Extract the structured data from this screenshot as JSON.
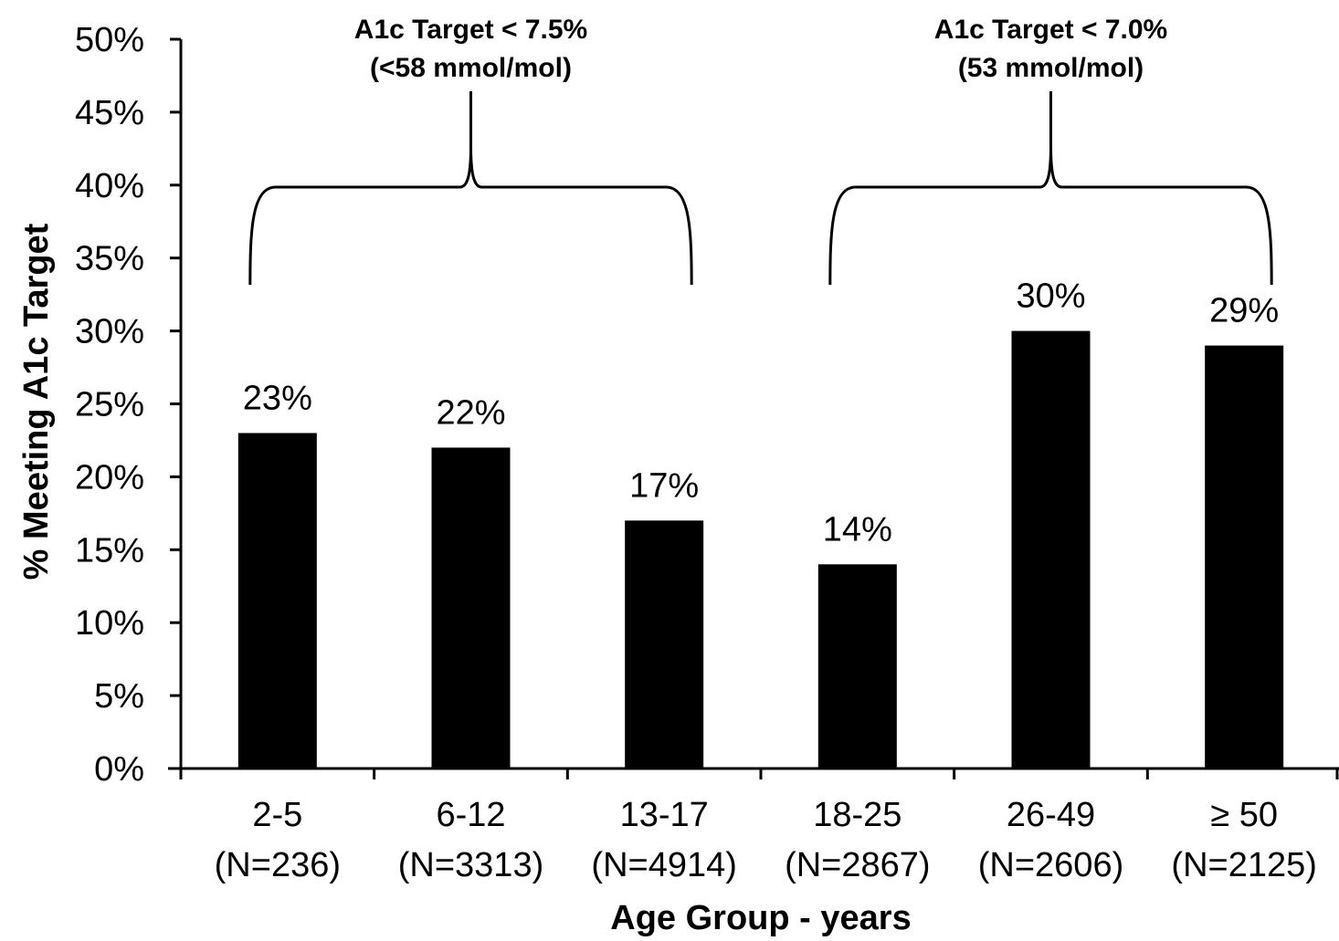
{
  "chart_data": {
    "type": "bar",
    "categories": [
      "2-5",
      "6-12",
      "13-17",
      "18-25",
      "26-49",
      "≥ 50"
    ],
    "category_counts": [
      "(N=236)",
      "(N=3313)",
      "(N=4914)",
      "(N=2867)",
      "(N=2606)",
      "(N=2125)"
    ],
    "values": [
      23,
      22,
      17,
      14,
      30,
      29
    ],
    "value_labels": [
      "23%",
      "22%",
      "17%",
      "14%",
      "30%",
      "29%"
    ],
    "xlabel": "Age Group - years",
    "ylabel": "% Meeting A1c Target",
    "ylim": [
      0,
      50
    ],
    "yticks": [
      "0%",
      "5%",
      "10%",
      "15%",
      "20%",
      "25%",
      "30%",
      "35%",
      "40%",
      "45%",
      "50%"
    ],
    "bar_color": "#000000",
    "grid": false,
    "annotations": [
      {
        "line1": "A1c Target < 7.5%",
        "line2": "(<58 mmol/mol)",
        "spans_categories": [
          0,
          2
        ]
      },
      {
        "line1": "A1c Target < 7.0%",
        "line2": "(53 mmol/mol)",
        "spans_categories": [
          3,
          5
        ]
      }
    ]
  }
}
